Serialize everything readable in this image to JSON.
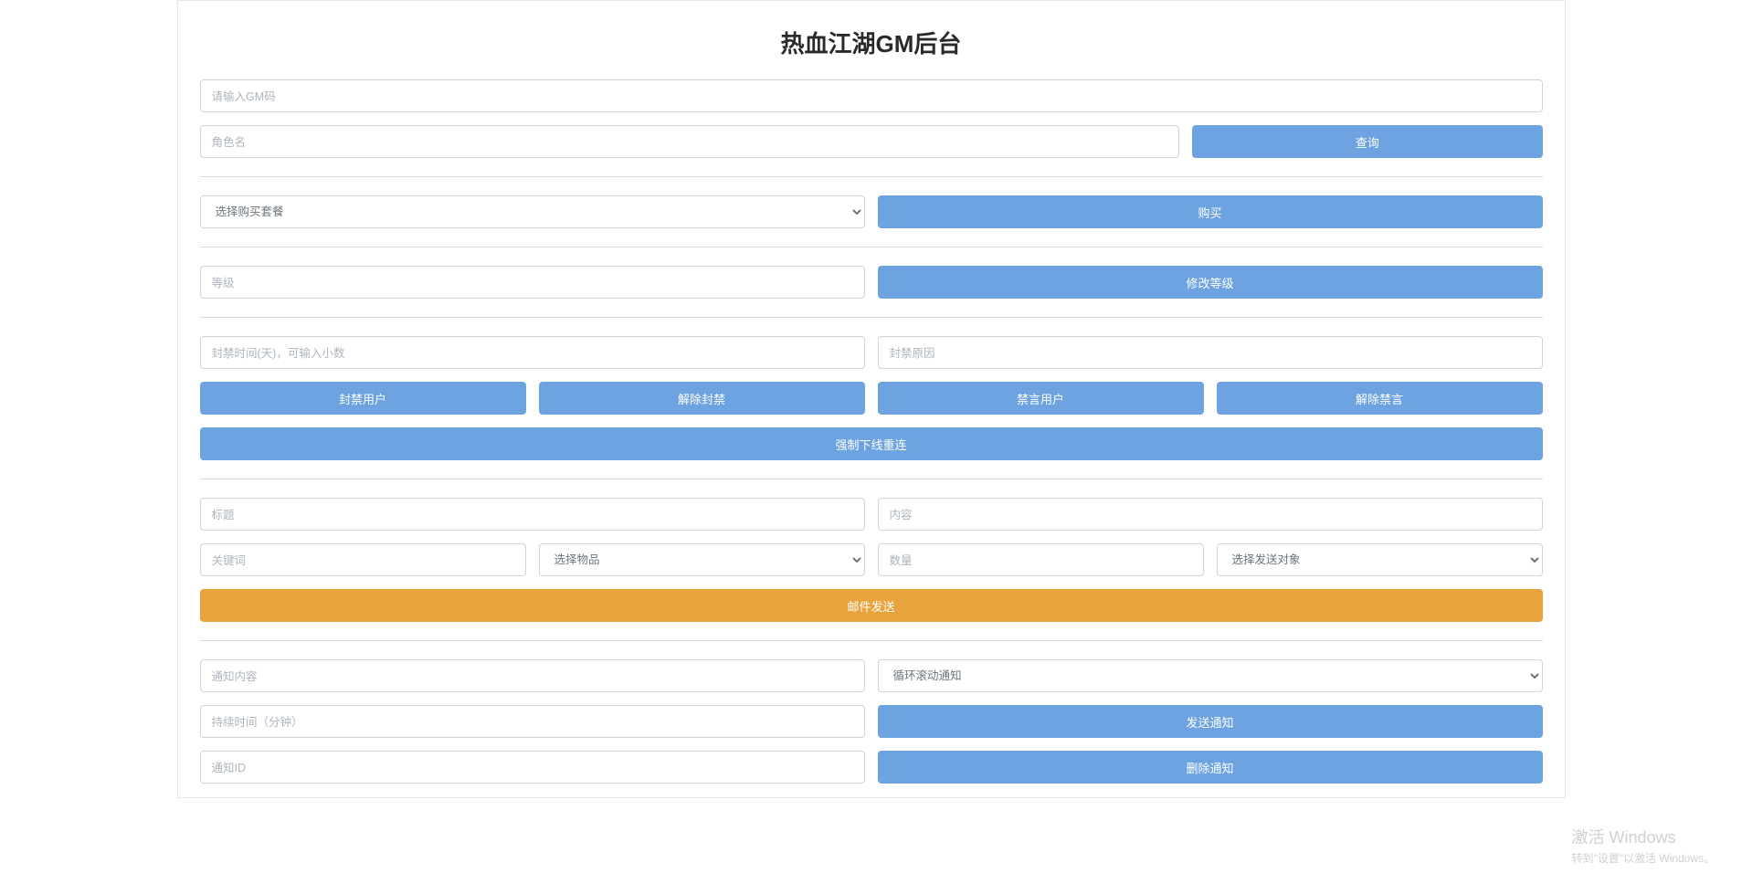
{
  "title": "热血江湖GM后台",
  "gm_code": {
    "placeholder": "请输入GM码"
  },
  "query": {
    "role_placeholder": "角色名",
    "query_btn": "查询"
  },
  "purchase": {
    "select_label": "选择购买套餐",
    "buy_btn": "购买"
  },
  "level": {
    "placeholder": "等级",
    "modify_btn": "修改等级"
  },
  "ban": {
    "time_placeholder": "封禁时间(天)，可输入小数",
    "reason_placeholder": "封禁原因",
    "ban_user_btn": "封禁用户",
    "unban_btn": "解除封禁",
    "mute_btn": "禁言用户",
    "unmute_btn": "解除禁言",
    "force_offline_btn": "强制下线重连"
  },
  "mail": {
    "title_placeholder": "标题",
    "content_placeholder": "内容",
    "keyword_placeholder": "关键词",
    "item_select_label": "选择物品",
    "quantity_placeholder": "数量",
    "target_select_label": "选择发送对象",
    "send_btn": "邮件发送"
  },
  "notice": {
    "content_placeholder": "通知内容",
    "type_select_label": "循环滚动通知",
    "duration_placeholder": "持续时间（分钟）",
    "send_btn": "发送通知",
    "id_placeholder": "通知ID",
    "delete_btn": "删除通知"
  },
  "watermark": {
    "line1": "激活 Windows",
    "line2": "转到\"设置\"以激活 Windows。"
  }
}
